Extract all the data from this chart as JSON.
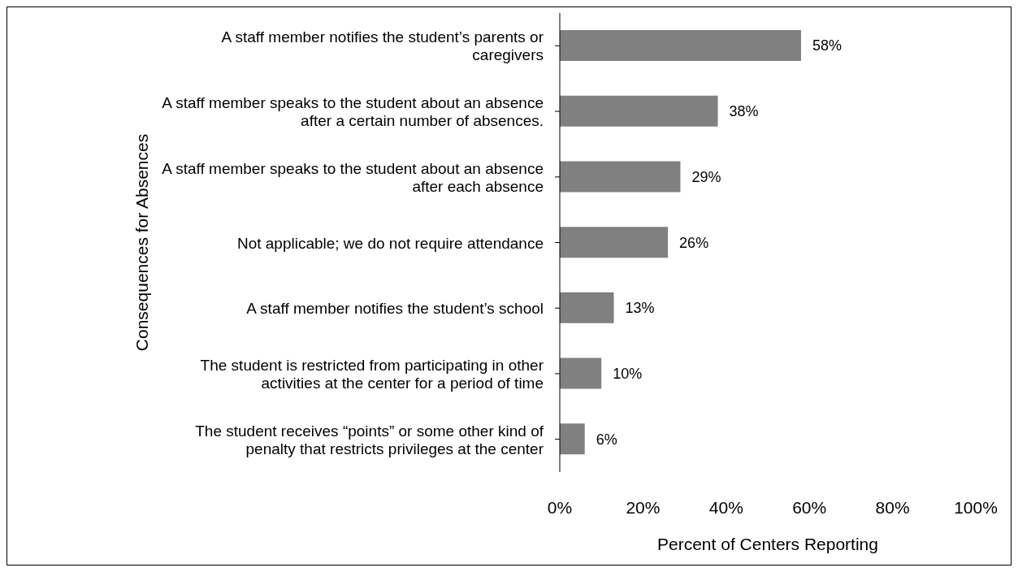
{
  "chart_data": {
    "type": "bar",
    "orientation": "horizontal",
    "ylabel": "Consequences for Absences",
    "xlabel": "Percent of Centers Reporting",
    "categories": [
      "A staff member notifies the student’s parents or caregivers",
      "A staff member speaks to the student about an absence after a certain number of absences.",
      "A staff member speaks to the student about an absence after each absence",
      "Not applicable; we do not require attendance",
      "A staff member notifies the student’s school",
      "The student is restricted from participating in other activities at the center for a period of time",
      "The student receives “points” or some other kind of penalty that restricts privileges at the center"
    ],
    "values": [
      58,
      38,
      29,
      26,
      13,
      10,
      6
    ],
    "value_labels": [
      "58%",
      "38%",
      "29%",
      "26%",
      "13%",
      "10%",
      "6%"
    ],
    "color": "#808080",
    "xlim": [
      0,
      100
    ],
    "xticks": [
      {
        "value": 0,
        "label": "0%"
      },
      {
        "value": 20,
        "label": "20%"
      },
      {
        "value": 40,
        "label": "40%"
      },
      {
        "value": 60,
        "label": "60%"
      },
      {
        "value": 80,
        "label": "80%"
      },
      {
        "value": 100,
        "label": "100%"
      }
    ],
    "grid": false,
    "legend": false
  }
}
